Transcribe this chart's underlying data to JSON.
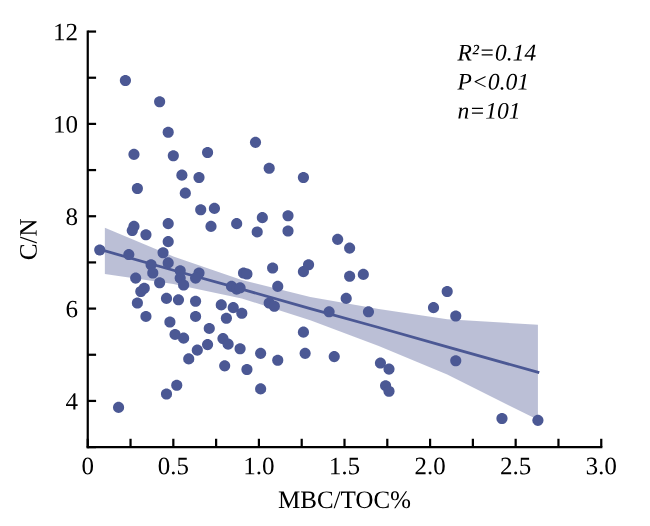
{
  "chart_data": {
    "type": "scatter",
    "xlabel": "MBC/TOC%",
    "ylabel": "C/N",
    "annotations": [
      "R²=0.14",
      "P<0.01",
      "n=101"
    ],
    "xlim": [
      0,
      3
    ],
    "ylim": [
      3,
      12
    ],
    "xticks": [
      {
        "value": 0,
        "label": "0"
      },
      {
        "value": 0.25,
        "label": null
      },
      {
        "value": 0.5,
        "label": "0.5"
      },
      {
        "value": 0.75,
        "label": null
      },
      {
        "value": 1.0,
        "label": "1.0"
      },
      {
        "value": 1.25,
        "label": null
      },
      {
        "value": 1.5,
        "label": "1.5"
      },
      {
        "value": 1.75,
        "label": null
      },
      {
        "value": 2.0,
        "label": "2.0"
      },
      {
        "value": 2.25,
        "label": null
      },
      {
        "value": 2.5,
        "label": "2.5"
      },
      {
        "value": 2.75,
        "label": null
      },
      {
        "value": 3.0,
        "label": "3.0"
      }
    ],
    "yticks": [
      {
        "value": 3,
        "label": null
      },
      4,
      {
        "value": 5,
        "label": null
      },
      6,
      {
        "value": 7,
        "label": null
      },
      8,
      {
        "value": 9,
        "label": null
      },
      10,
      {
        "value": 11,
        "label": null
      },
      12
    ],
    "grid": false,
    "legend": false,
    "series": [
      {
        "color": "#4b5894",
        "marker": "circle",
        "x": [
          0.22,
          0.42,
          0.47,
          0.27,
          0.5,
          0.7,
          0.98,
          0.55,
          0.65,
          1.06,
          1.26,
          0.29,
          0.57,
          0.66,
          0.74,
          0.72,
          0.87,
          1.02,
          1.17,
          0.99,
          1.46,
          1.53,
          0.47,
          0.27,
          0.26,
          0.34,
          0.47,
          0.07,
          0.24,
          0.44,
          0.37,
          0.47,
          0.54,
          0.38,
          0.54,
          0.65,
          0.28,
          0.42,
          0.56,
          0.63,
          0.91,
          0.93,
          1.08,
          1.26,
          1.29,
          0.33,
          0.31,
          0.29,
          0.46,
          0.53,
          0.63,
          0.84,
          0.87,
          0.89,
          1.11,
          1.06,
          1.09,
          0.78,
          0.85,
          0.9,
          0.34,
          0.48,
          0.63,
          0.81,
          0.71,
          0.51,
          0.56,
          0.79,
          0.82,
          1.26,
          1.64,
          0.7,
          0.64,
          0.89,
          0.59,
          1.01,
          1.11,
          1.27,
          1.44,
          0.8,
          0.93,
          0.52,
          0.46,
          1.01,
          0.18,
          1.17,
          1.61,
          1.51,
          1.53,
          1.41,
          2.1,
          2.02,
          2.15,
          2.15,
          1.71,
          1.76,
          1.74,
          1.76,
          2.42,
          2.63
        ],
        "values": [
          10.94,
          10.48,
          9.82,
          9.34,
          9.31,
          9.38,
          9.6,
          8.89,
          8.84,
          9.04,
          8.84,
          8.6,
          8.5,
          8.14,
          8.17,
          7.78,
          7.84,
          7.97,
          8.01,
          7.66,
          7.5,
          7.31,
          7.84,
          7.78,
          7.69,
          7.6,
          7.45,
          7.27,
          7.17,
          7.21,
          6.95,
          6.99,
          6.82,
          6.77,
          6.66,
          6.77,
          6.66,
          6.56,
          6.51,
          6.66,
          6.77,
          6.75,
          6.88,
          6.8,
          6.95,
          6.44,
          6.37,
          6.12,
          6.22,
          6.19,
          6.16,
          6.48,
          6.42,
          6.45,
          6.48,
          6.12,
          6.05,
          6.08,
          6.02,
          5.9,
          5.83,
          5.71,
          5.83,
          5.79,
          5.57,
          5.44,
          5.36,
          5.35,
          5.23,
          5.49,
          5.93,
          5.22,
          5.1,
          5.13,
          4.91,
          5.03,
          4.88,
          5.03,
          4.96,
          4.76,
          4.68,
          4.34,
          4.15,
          4.26,
          3.86,
          7.68,
          6.74,
          6.22,
          6.7,
          5.93,
          6.37,
          6.02,
          5.84,
          4.87,
          4.82,
          4.69,
          4.33,
          4.21,
          3.62,
          3.58
        ]
      },
      {
        "type": "line",
        "color": "#4b5894",
        "marker": "none",
        "x": [
          0.1,
          0.5,
          0.9,
          1.3,
          1.7,
          2.1,
          2.63
        ],
        "values": [
          7.25,
          6.83,
          6.42,
          6.0,
          5.59,
          5.17,
          4.62
        ],
        "lower": [
          6.75,
          6.53,
          6.22,
          5.75,
          5.19,
          4.57,
          3.59
        ],
        "upper": [
          7.75,
          7.13,
          6.62,
          6.25,
          5.99,
          5.77,
          5.65
        ]
      }
    ]
  }
}
